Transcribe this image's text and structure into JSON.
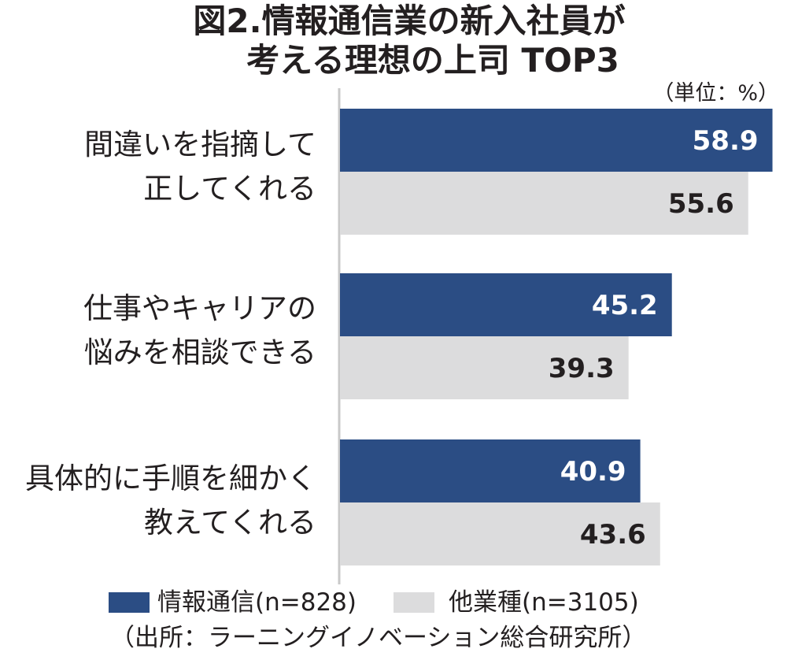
{
  "title_line1": "図2.情報通信業の新入社員が",
  "title_line2": "考える理想の上司 TOP3",
  "unit_label": "（単位：%）",
  "source": "（出所：ラーニングイノベーション総合研究所）",
  "chart_data": {
    "type": "bar",
    "orientation": "horizontal",
    "title": "図2.情報通信業の新入社員が考える理想の上司 TOP3",
    "unit": "%",
    "categories": [
      [
        "間違いを指摘して",
        "正してくれる"
      ],
      [
        "仕事やキャリアの",
        "悩みを相談できる"
      ],
      [
        "具体的に手順を細かく",
        "教えてくれる"
      ]
    ],
    "series": [
      {
        "name": "情報通信(n=828)",
        "color": "#2b4d84",
        "label_color": "#ffffff",
        "values": [
          58.9,
          45.2,
          40.9
        ]
      },
      {
        "name": "他業種(n=3105)",
        "color": "#dcdcdd",
        "label_color": "#231f20",
        "values": [
          55.6,
          39.3,
          43.6
        ]
      }
    ],
    "xlim": [
      0,
      60
    ],
    "grid": false,
    "legend": "bottom"
  }
}
